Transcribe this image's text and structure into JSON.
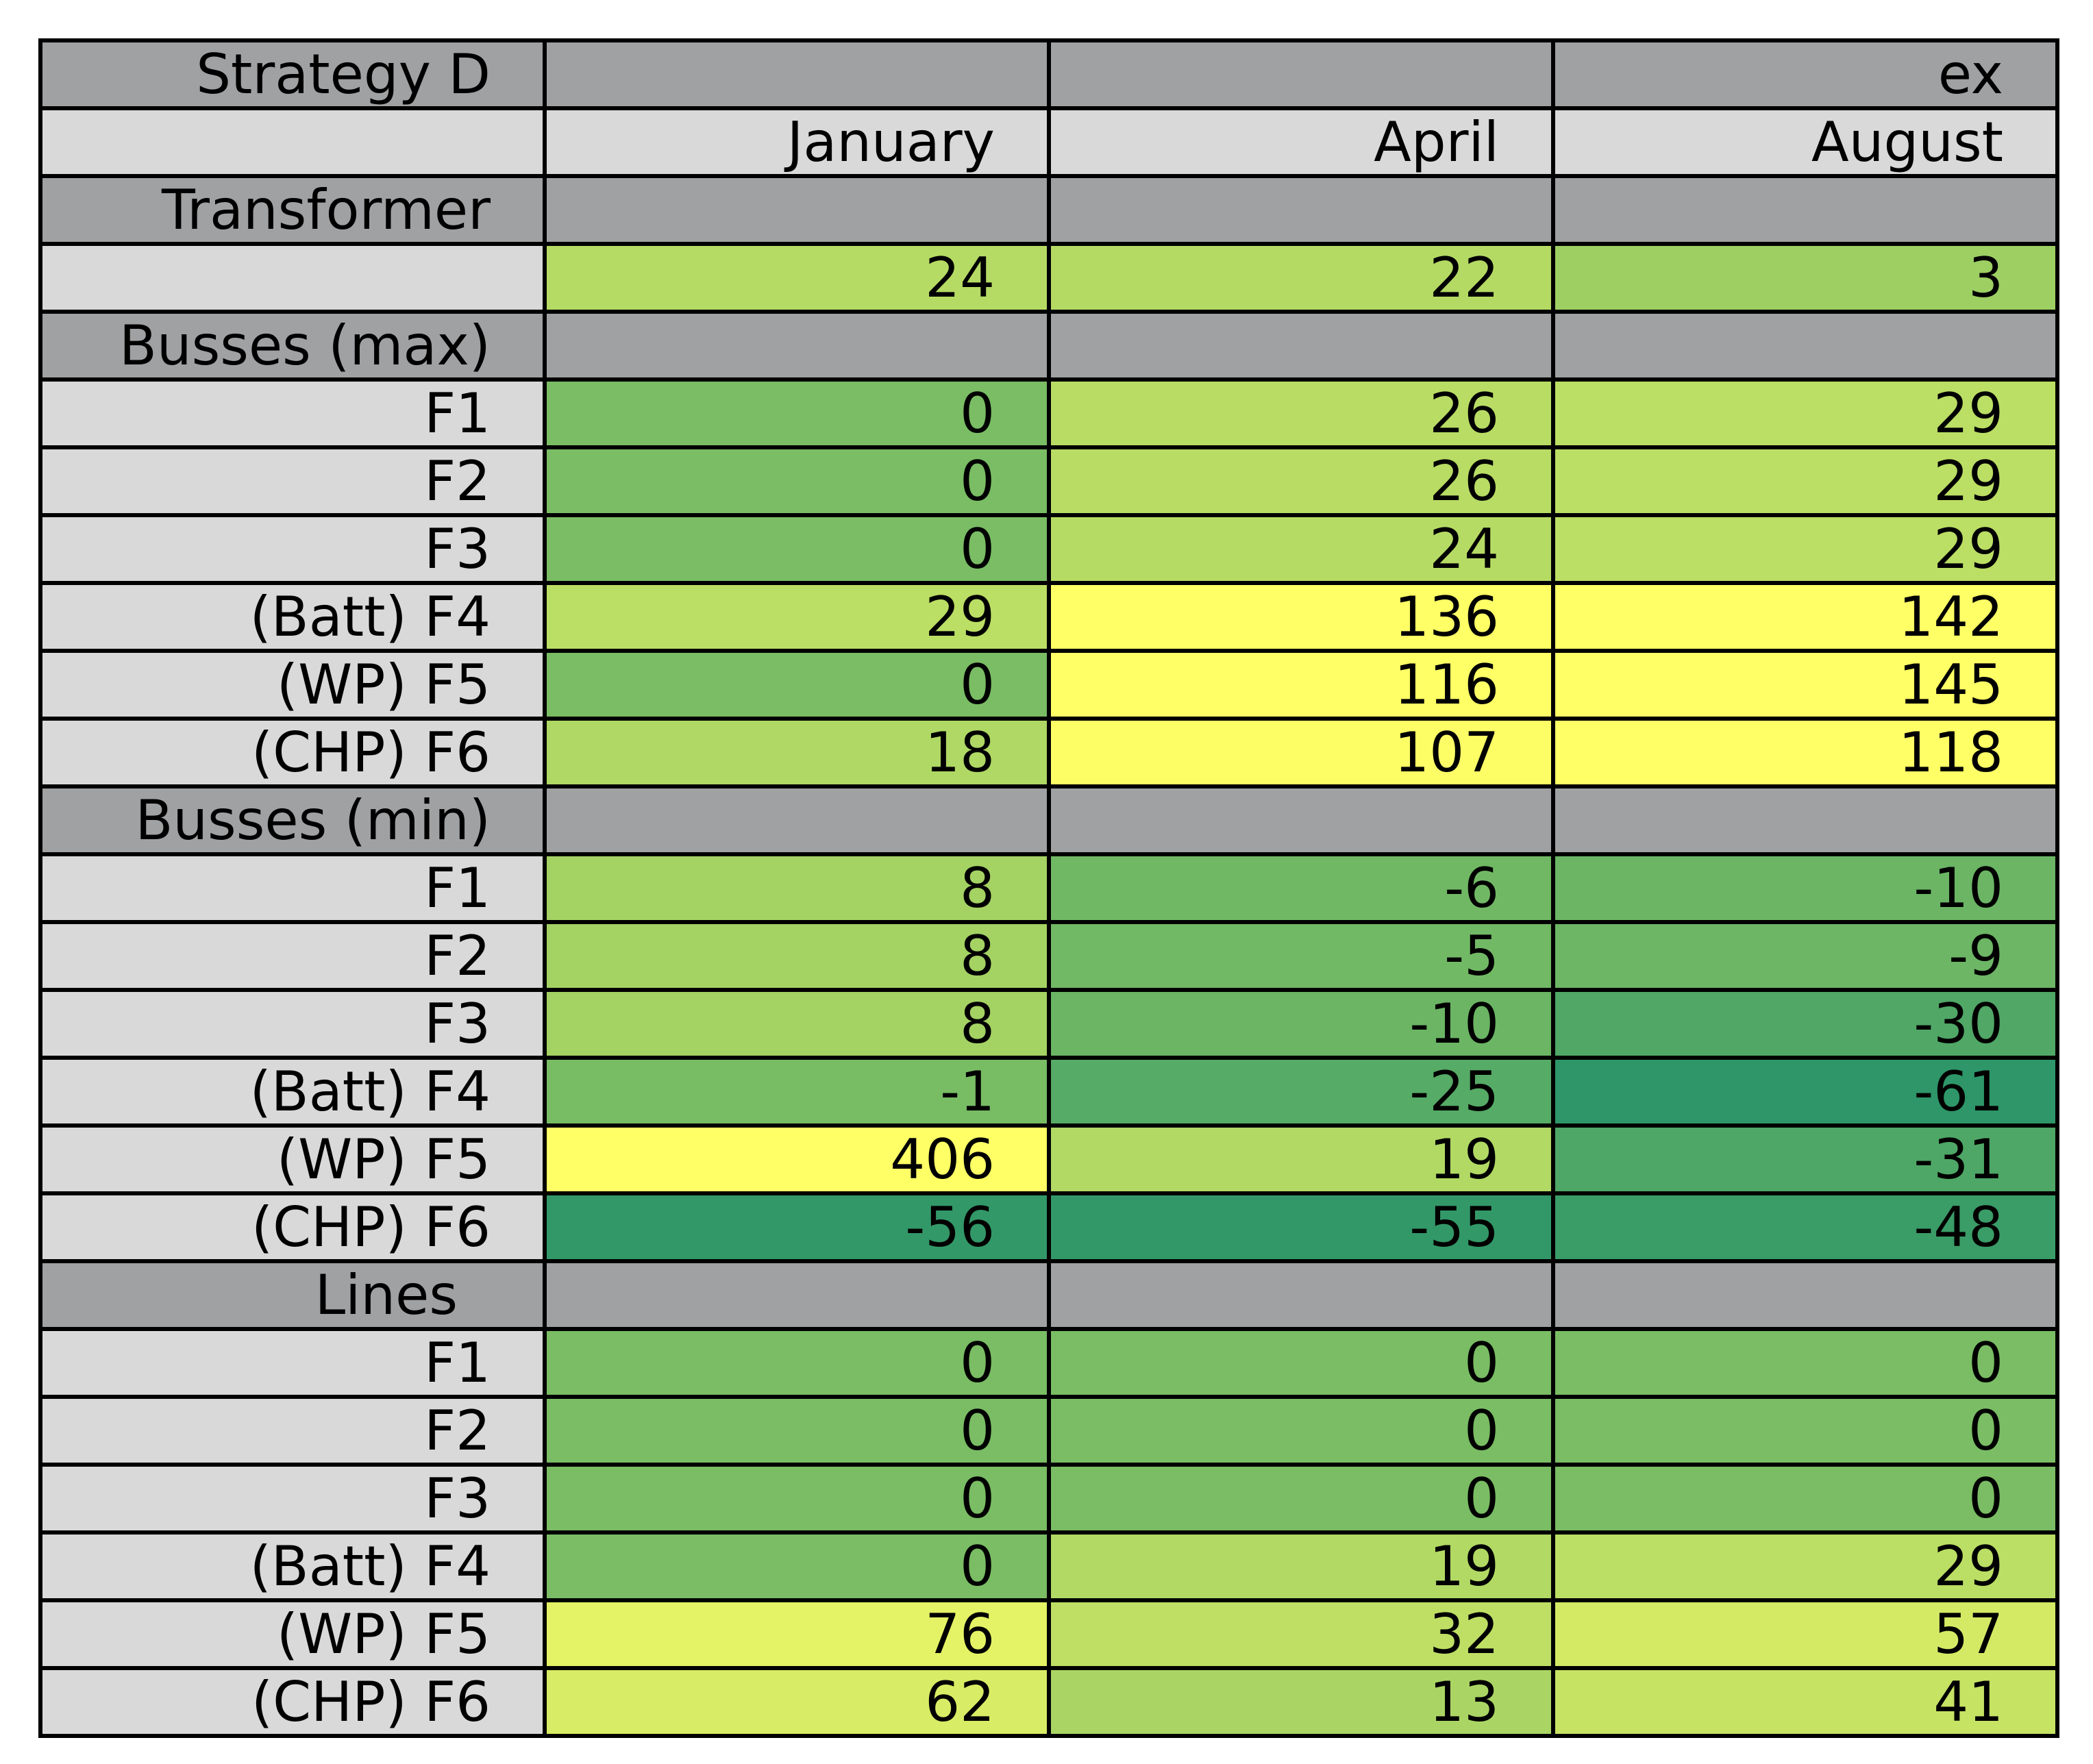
{
  "chart_data": {
    "type": "table",
    "title": "Strategy D",
    "header_top": [
      "",
      "",
      "ex"
    ],
    "columns": [
      "January",
      "April",
      "August"
    ],
    "colors": {
      "section": "#a0a1a3",
      "header": "#d9d9d9",
      "label": "#d9d9d9",
      "scale_low": "#2e9668",
      "scale_mid": "#97cc63",
      "scale_high": "#ffff66"
    },
    "color_scale": {
      "stops": [
        -61,
        0,
        110
      ],
      "note": "lower values greener"
    },
    "sections": [
      {
        "name": "Transformer",
        "rows": [
          {
            "label": "",
            "values": [
              24,
              22,
              3
            ]
          }
        ]
      },
      {
        "name": "Busses (max)",
        "rows": [
          {
            "label": "F1",
            "values": [
              0,
              26,
              29
            ]
          },
          {
            "label": "F2",
            "values": [
              0,
              26,
              29
            ]
          },
          {
            "label": "F3",
            "values": [
              0,
              24,
              29
            ]
          },
          {
            "label": "(Batt) F4",
            "values": [
              29,
              136,
              142
            ]
          },
          {
            "label": "(WP) F5",
            "values": [
              0,
              116,
              145
            ]
          },
          {
            "label": "(CHP) F6",
            "values": [
              18,
              107,
              118
            ]
          }
        ]
      },
      {
        "name": "Busses (min)",
        "rows": [
          {
            "label": "F1",
            "values": [
              8,
              -6,
              -10
            ]
          },
          {
            "label": "F2",
            "values": [
              8,
              -5,
              -9
            ]
          },
          {
            "label": "F3",
            "values": [
              8,
              -10,
              -30
            ]
          },
          {
            "label": "(Batt) F4",
            "values": [
              -1,
              -25,
              -61
            ]
          },
          {
            "label": "(WP) F5",
            "values": [
              406,
              19,
              -31
            ]
          },
          {
            "label": "(CHP) F6",
            "values": [
              -56,
              -55,
              -48
            ]
          }
        ]
      },
      {
        "name": "Lines",
        "rows": [
          {
            "label": "F1",
            "values": [
              0,
              0,
              0
            ]
          },
          {
            "label": "F2",
            "values": [
              0,
              0,
              0
            ]
          },
          {
            "label": "F3",
            "values": [
              0,
              0,
              0
            ]
          },
          {
            "label": "(Batt) F4",
            "values": [
              0,
              19,
              29
            ]
          },
          {
            "label": "(WP) F5",
            "values": [
              76,
              32,
              57
            ]
          },
          {
            "label": "(CHP) F6",
            "values": [
              62,
              13,
              41
            ]
          }
        ]
      }
    ]
  }
}
